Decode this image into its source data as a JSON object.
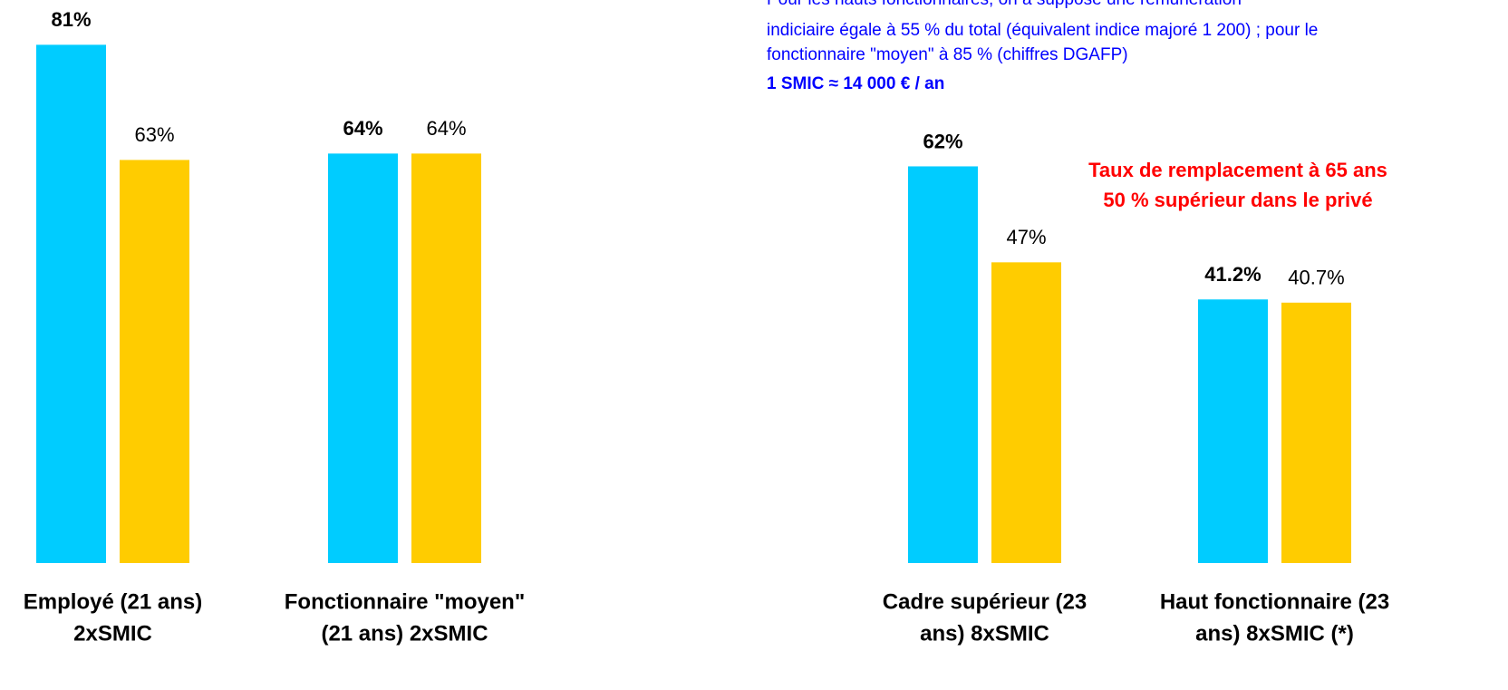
{
  "chart_data": [
    {
      "type": "bar",
      "categories": [
        [
          "Employé (21 ans)",
          "2xSMIC"
        ],
        [
          "Fonctionnaire \"moyen\"",
          "(21 ans) 2xSMIC"
        ]
      ],
      "series": [
        {
          "color": "#00ccff",
          "values": [
            81,
            64
          ],
          "value_labels": [
            "81%",
            "64%"
          ]
        },
        {
          "color": "#ffcc00",
          "values": [
            63,
            64
          ],
          "value_labels": [
            "63%",
            "64%"
          ]
        }
      ],
      "ylim": [
        0,
        88
      ]
    },
    {
      "type": "bar",
      "categories": [
        [
          "Cadre supérieur (23",
          "ans)  8xSMIC"
        ],
        [
          "Haut fonctionnaire (23",
          "ans)  8xSMIC (*)"
        ]
      ],
      "series": [
        {
          "color": "#00ccff",
          "values": [
            62,
            41.2
          ],
          "value_labels": [
            "62%",
            "41.2%"
          ]
        },
        {
          "color": "#ffcc00",
          "values": [
            47,
            40.7
          ],
          "value_labels": [
            "47%",
            "40.7%"
          ]
        }
      ],
      "ylim": [
        0,
        88
      ],
      "note": [
        "Pour les hauts fonctionnaires, on a supposé une rémunération",
        "indiciaire égale à 55 % du total (équivalent indice majoré 1 200) ; pour le",
        "fonctionnaire \"moyen\" à 85 % (chiffres DGAFP)"
      ],
      "note_bold": "1 SMIC ≈ 14 000 € / an",
      "callout": [
        "Taux de remplacement à 65 ans",
        "50 % supérieur dans le privé"
      ]
    }
  ]
}
